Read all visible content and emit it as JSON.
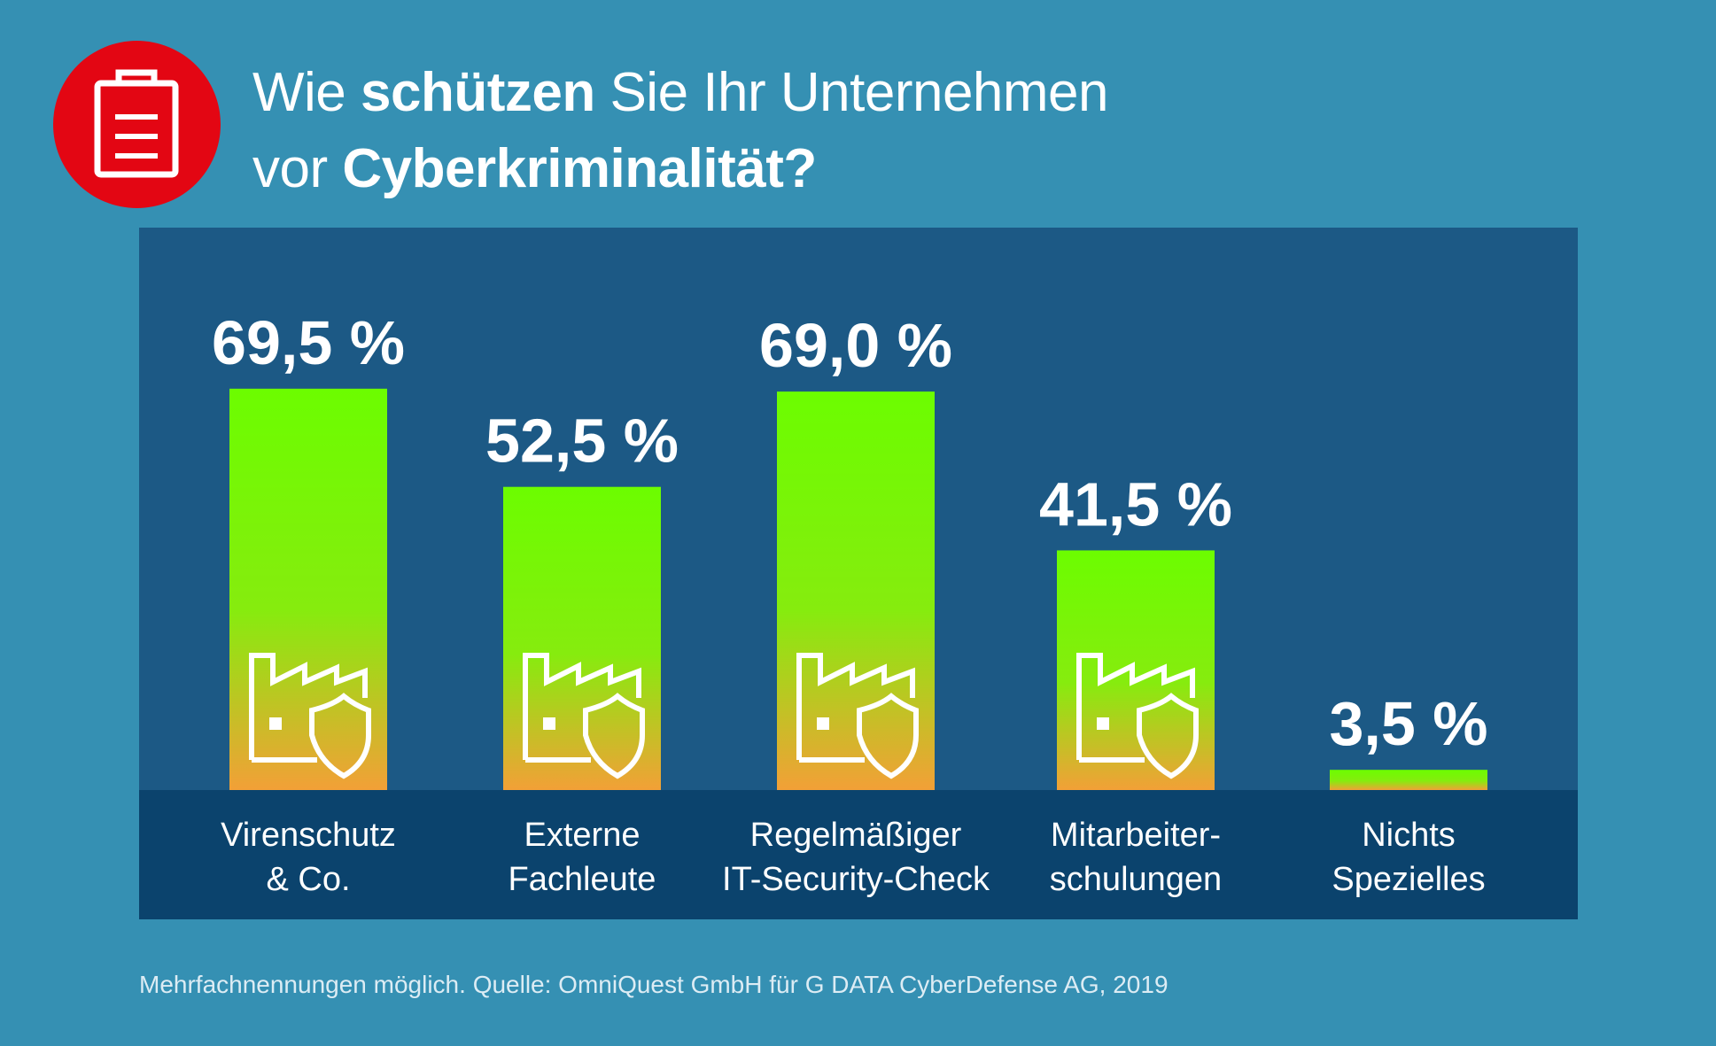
{
  "title": {
    "part1": "Wie ",
    "bold1": "schützen",
    "part2": " Sie Ihr Unternehmen",
    "part3": "vor ",
    "bold2": "Cyberkriminalität?"
  },
  "badge_icon": "clipboard-icon",
  "bar_icon": "factory-shield-icon",
  "colors": {
    "background": "#3590b3",
    "panel": "#1c5985",
    "baseband": "#0b436d",
    "bar_top": "#6cfd00",
    "bar_bottom": "#f2a037",
    "badge": "#e30613"
  },
  "chart_data": {
    "type": "bar",
    "categories": [
      [
        "Virenschutz",
        "& Co."
      ],
      [
        "Externe",
        "Fachleute"
      ],
      [
        "Regelmäßiger",
        "IT-Security-Check"
      ],
      [
        "Mitarbeiter-",
        "schulungen"
      ],
      [
        "Nichts",
        "Spezielles"
      ]
    ],
    "values": [
      69.5,
      52.5,
      69.0,
      41.5,
      3.5
    ],
    "value_labels": [
      "69,5 %",
      "52,5 %",
      "69,0 %",
      "41,5 %",
      "3,5 %"
    ],
    "ylim": [
      0,
      100
    ],
    "grid": false,
    "legend": "none"
  },
  "footer": "Mehrfachnennungen möglich. Quelle: OmniQuest GmbH für G DATA CyberDefense AG, 2019"
}
